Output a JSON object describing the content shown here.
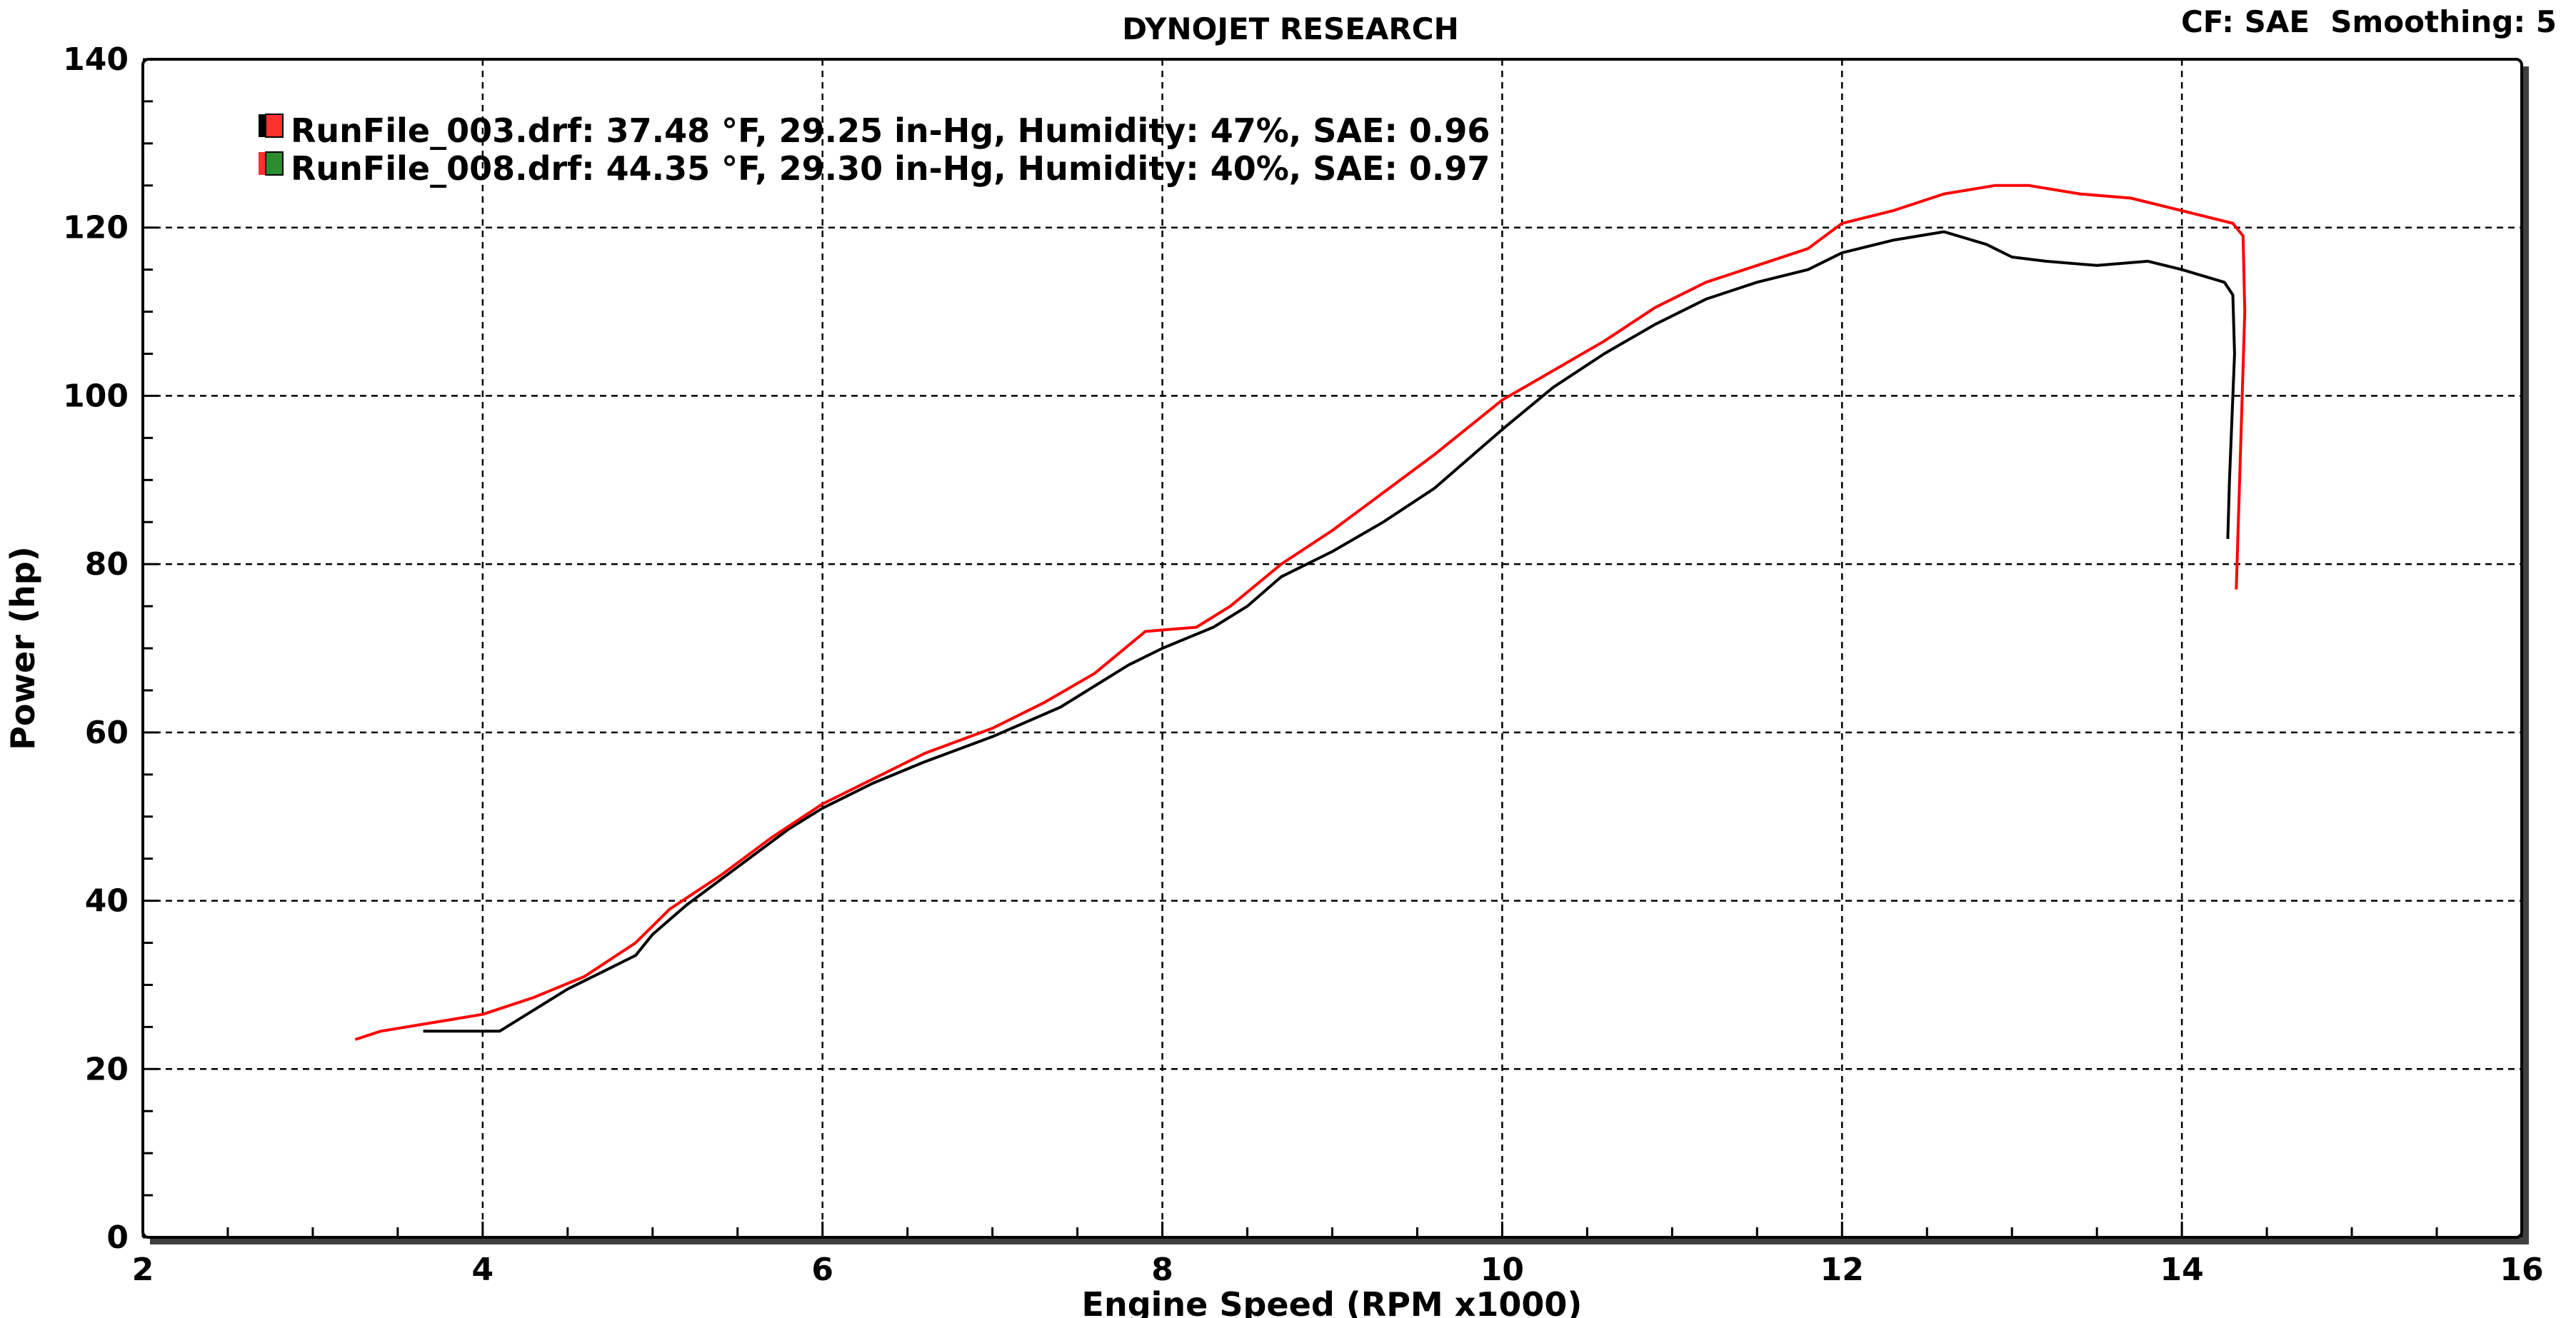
{
  "chart_data": {
    "type": "line",
    "title": "DYNOJET RESEARCH",
    "header_right": "CF: SAE  Smoothing: 5",
    "xlabel": "Engine Speed (RPM x1000)",
    "ylabel": "Power (hp)",
    "xlim": [
      2,
      16
    ],
    "ylim": [
      0,
      140
    ],
    "x_ticks": [
      2,
      4,
      6,
      8,
      10,
      12,
      14,
      16
    ],
    "y_ticks": [
      0,
      20,
      40,
      60,
      80,
      100,
      120,
      140
    ],
    "x_minor_step": 0.5,
    "y_minor_step": 5,
    "grid": true,
    "legend_position": "top-left",
    "series": [
      {
        "name": "RunFile_003.drf: 37.48 °F, 29.25 in-Hg, Humidity: 47%, SAE: 0.96",
        "color": "#000000",
        "swatch": [
          "#000000",
          "#ff3030"
        ],
        "points": [
          [
            3.65,
            24.5
          ],
          [
            4.0,
            24.5
          ],
          [
            4.1,
            24.5
          ],
          [
            4.3,
            27
          ],
          [
            4.5,
            29.5
          ],
          [
            4.7,
            31.5
          ],
          [
            4.9,
            33.5
          ],
          [
            5.0,
            36
          ],
          [
            5.2,
            39.5
          ],
          [
            5.5,
            44
          ],
          [
            5.8,
            48.5
          ],
          [
            6.0,
            51
          ],
          [
            6.3,
            54
          ],
          [
            6.6,
            56.5
          ],
          [
            7.0,
            59.5
          ],
          [
            7.4,
            63
          ],
          [
            7.6,
            65.5
          ],
          [
            7.8,
            68
          ],
          [
            8.0,
            70
          ],
          [
            8.3,
            72.5
          ],
          [
            8.5,
            75
          ],
          [
            8.7,
            78.5
          ],
          [
            9.0,
            81.5
          ],
          [
            9.3,
            85
          ],
          [
            9.6,
            89
          ],
          [
            10.0,
            96
          ],
          [
            10.3,
            101
          ],
          [
            10.6,
            105
          ],
          [
            10.9,
            108.5
          ],
          [
            11.2,
            111.5
          ],
          [
            11.5,
            113.5
          ],
          [
            11.8,
            115
          ],
          [
            12.0,
            117
          ],
          [
            12.3,
            118.5
          ],
          [
            12.6,
            119.5
          ],
          [
            12.85,
            118
          ],
          [
            13.0,
            116.5
          ],
          [
            13.2,
            116
          ],
          [
            13.5,
            115.5
          ],
          [
            13.8,
            116
          ],
          [
            14.0,
            115
          ],
          [
            14.25,
            113.5
          ],
          [
            14.3,
            112
          ],
          [
            14.31,
            105
          ],
          [
            14.28,
            90
          ],
          [
            14.27,
            83
          ]
        ]
      },
      {
        "name": "RunFile_008.drf: 44.35 °F, 29.30 in-Hg, Humidity: 40%, SAE: 0.97",
        "color": "#ff0000",
        "swatch": [
          "#ff3030",
          "#2e8b2e"
        ],
        "points": [
          [
            3.25,
            23.5
          ],
          [
            3.4,
            24.5
          ],
          [
            3.7,
            25.5
          ],
          [
            4.0,
            26.5
          ],
          [
            4.3,
            28.5
          ],
          [
            4.6,
            31
          ],
          [
            4.9,
            35
          ],
          [
            5.1,
            39
          ],
          [
            5.4,
            43
          ],
          [
            5.7,
            47.5
          ],
          [
            6.0,
            51.5
          ],
          [
            6.3,
            54.5
          ],
          [
            6.6,
            57.5
          ],
          [
            7.0,
            60.5
          ],
          [
            7.3,
            63.5
          ],
          [
            7.6,
            67
          ],
          [
            7.9,
            72
          ],
          [
            8.2,
            72.5
          ],
          [
            8.4,
            75
          ],
          [
            8.7,
            80
          ],
          [
            9.0,
            84
          ],
          [
            9.3,
            88.5
          ],
          [
            9.6,
            93
          ],
          [
            10.0,
            99.5
          ],
          [
            10.3,
            103
          ],
          [
            10.6,
            106.5
          ],
          [
            10.9,
            110.5
          ],
          [
            11.2,
            113.5
          ],
          [
            11.5,
            115.5
          ],
          [
            11.8,
            117.5
          ],
          [
            12.0,
            120.5
          ],
          [
            12.3,
            122
          ],
          [
            12.6,
            124
          ],
          [
            12.9,
            125
          ],
          [
            13.1,
            125
          ],
          [
            13.4,
            124
          ],
          [
            13.7,
            123.5
          ],
          [
            14.0,
            122
          ],
          [
            14.3,
            120.5
          ],
          [
            14.36,
            119
          ],
          [
            14.37,
            110
          ],
          [
            14.34,
            90
          ],
          [
            14.32,
            77
          ]
        ]
      }
    ]
  }
}
